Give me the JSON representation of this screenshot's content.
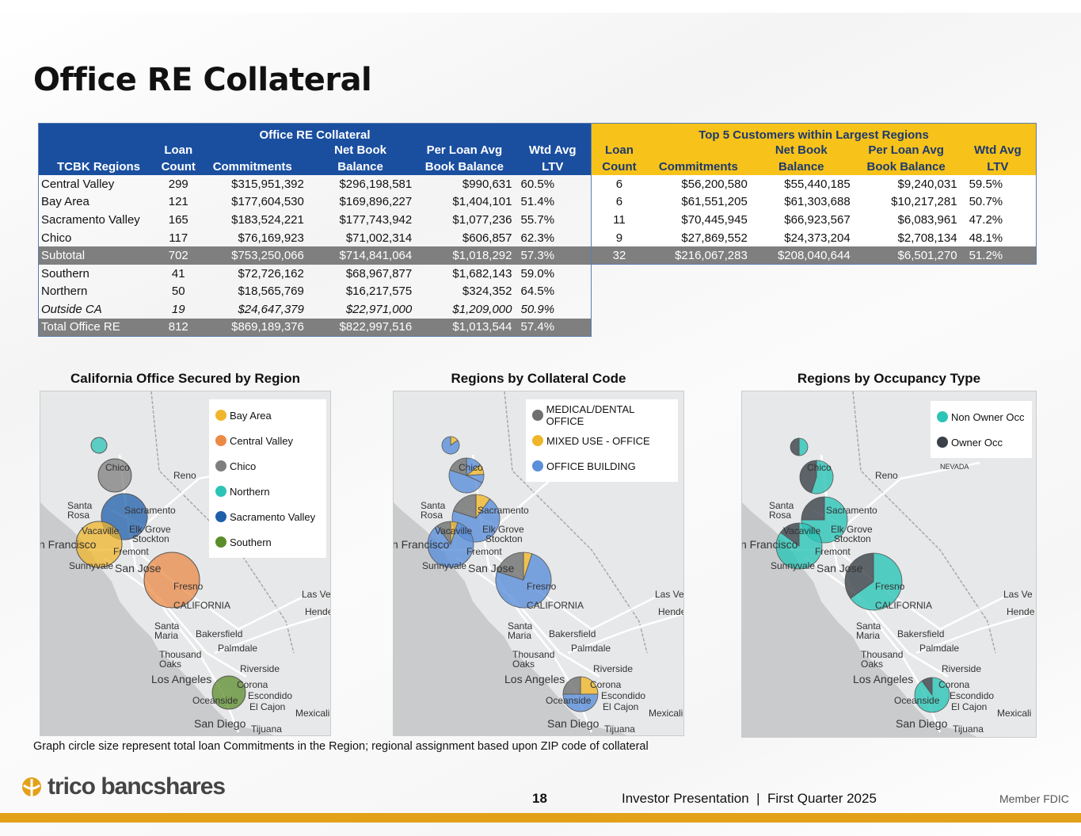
{
  "title": "Office RE Collateral",
  "left_table": {
    "group_header": "Office RE Collateral",
    "headers": [
      "TCBK Regions",
      "Loan Count",
      "Commitments",
      "Net Book Balance",
      "Per Loan Avg Book Balance",
      "Wtd Avg LTV"
    ],
    "header_lines": [
      [
        "TCBK Regions"
      ],
      [
        "Loan",
        "Count"
      ],
      [
        "Commitments"
      ],
      [
        "Net Book",
        "Balance"
      ],
      [
        "Per Loan Avg",
        "Book Balance"
      ],
      [
        "Wtd Avg",
        "LTV"
      ]
    ],
    "rows": [
      {
        "region": "Central Valley",
        "count": "299",
        "commitments": "$315,951,392",
        "nbb": "$296,198,581",
        "avg": "$990,631",
        "ltv": "60.5%",
        "style": ""
      },
      {
        "region": "Bay Area",
        "count": "121",
        "commitments": "$177,604,530",
        "nbb": "$169,896,227",
        "avg": "$1,404,101",
        "ltv": "51.4%",
        "style": ""
      },
      {
        "region": "Sacramento Valley",
        "count": "165",
        "commitments": "$183,524,221",
        "nbb": "$177,743,942",
        "avg": "$1,077,236",
        "ltv": "55.7%",
        "style": ""
      },
      {
        "region": "Chico",
        "count": "117",
        "commitments": "$76,169,923",
        "nbb": "$71,002,314",
        "avg": "$606,857",
        "ltv": "62.3%",
        "style": ""
      },
      {
        "region": "Subtotal",
        "count": "702",
        "commitments": "$753,250,066",
        "nbb": "$714,841,064",
        "avg": "$1,018,292",
        "ltv": "57.3%",
        "style": "sub"
      },
      {
        "region": "Southern",
        "count": "41",
        "commitments": "$72,726,162",
        "nbb": "$68,967,877",
        "avg": "$1,682,143",
        "ltv": "59.0%",
        "style": ""
      },
      {
        "region": "Northern",
        "count": "50",
        "commitments": "$18,565,769",
        "nbb": "$16,217,575",
        "avg": "$324,352",
        "ltv": "64.5%",
        "style": ""
      },
      {
        "region": "Outside CA",
        "count": "19",
        "commitments": "$24,647,379",
        "nbb": "$22,971,000",
        "avg": "$1,209,000",
        "ltv": "50.9%",
        "style": "it"
      },
      {
        "region": "Total Office RE",
        "count": "812",
        "commitments": "$869,189,376",
        "nbb": "$822,997,516",
        "avg": "$1,013,544",
        "ltv": "57.4%",
        "style": "sub"
      }
    ]
  },
  "right_table": {
    "group_header": "Top 5 Customers within Largest Regions",
    "header_lines": [
      [
        "Loan",
        "Count"
      ],
      [
        "Commitments"
      ],
      [
        "Net Book",
        "Balance"
      ],
      [
        "Per Loan Avg",
        "Book Balance"
      ],
      [
        "Wtd Avg",
        "LTV"
      ]
    ],
    "rows": [
      {
        "count": "6",
        "commitments": "$56,200,580",
        "nbb": "$55,440,185",
        "avg": "$9,240,031",
        "ltv": "59.5%",
        "style": ""
      },
      {
        "count": "6",
        "commitments": "$61,551,205",
        "nbb": "$61,303,688",
        "avg": "$10,217,281",
        "ltv": "50.7%",
        "style": ""
      },
      {
        "count": "11",
        "commitments": "$70,445,945",
        "nbb": "$66,923,567",
        "avg": "$6,083,961",
        "ltv": "47.2%",
        "style": ""
      },
      {
        "count": "9",
        "commitments": "$27,869,552",
        "nbb": "$24,373,204",
        "avg": "$2,708,134",
        "ltv": "48.1%",
        "style": ""
      },
      {
        "count": "32",
        "commitments": "$216,067,283",
        "nbb": "$208,040,644",
        "avg": "$6,501,270",
        "ltv": "51.2%",
        "style": "sub"
      }
    ]
  },
  "maps": [
    {
      "title": "California Office Secured by Region",
      "legend": [
        {
          "label": "Bay Area",
          "color": "#f0b62b"
        },
        {
          "label": "Central Valley",
          "color": "#ea8a45"
        },
        {
          "label": "Chico",
          "color": "#7f7f7f"
        },
        {
          "label": "Northern",
          "color": "#2cc4b7"
        },
        {
          "label": "Sacramento Valley",
          "color": "#1f5faa"
        },
        {
          "label": "Southern",
          "color": "#5b8c2a"
        }
      ]
    },
    {
      "title": "Regions by Collateral Code",
      "legend": [
        {
          "label": "MEDICAL/DENTAL OFFICE",
          "color": "#6f6f6f"
        },
        {
          "label": "MIXED USE - OFFICE",
          "color": "#f0b62b"
        },
        {
          "label": "OFFICE BUILDING",
          "color": "#5b8fd9"
        }
      ]
    },
    {
      "title": "Regions by Occupancy Type",
      "legend": [
        {
          "label": "Non Owner Occ",
          "color": "#2cc4b7"
        },
        {
          "label": "Owner Occ",
          "color": "#3a4148"
        }
      ]
    }
  ],
  "cities": {
    "chico": "Chico",
    "reno": "Reno",
    "santa_rosa": "Santa\nRosa",
    "sacramento": "Sacramento",
    "vacaville": "Vacaville",
    "elk_grove": "Elk Grove",
    "stockton": "Stockton",
    "san_francisco": "n Francisco",
    "fremont": "Fremont",
    "sunnyvale": "Sunnyvale",
    "san_jose": "San Jose",
    "fresno": "Fresno",
    "california": "CALIFORNIA",
    "las_vegas": "Las Ve",
    "henderson": "Hende",
    "santa_maria": "Santa\nMaria",
    "bakersfield": "Bakersfield",
    "thousand_oaks": "Thousand\nOaks",
    "palmdale": "Palmdale",
    "riverside": "Riverside",
    "los_angeles": "Los Angeles",
    "corona": "Corona",
    "oceanside": "Oceanside",
    "escondido": "Escondido",
    "el_cajon": "El Cajon",
    "mexicali": "Mexicali",
    "san_diego": "San Diego",
    "tijuana": "Tijuana",
    "nevada": "NEVADA"
  },
  "footnote": "Graph circle size represent total loan Commitments in the Region; regional assignment based upon ZIP code of collateral",
  "footer": {
    "logo_text": "trico bancshares",
    "page_number": "18",
    "presentation": "Investor Presentation  |  First Quarter 2025",
    "fdic": "Member FDIC"
  }
}
